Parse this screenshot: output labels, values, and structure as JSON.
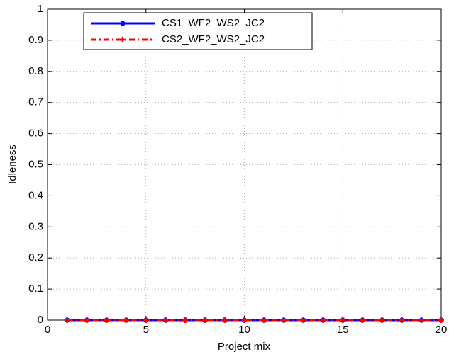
{
  "chart_data": {
    "type": "line",
    "x_label": "Project mix",
    "y_label": "Idleness",
    "x": [
      1,
      2,
      3,
      4,
      5,
      6,
      7,
      8,
      9,
      10,
      11,
      12,
      13,
      14,
      15,
      16,
      17,
      18,
      19,
      20
    ],
    "series": [
      {
        "name": "CS1_WF2_WS2_JC2",
        "color": "#0000ff",
        "linestyle": "solid",
        "marker": "dot",
        "values": [
          0,
          0,
          0,
          0,
          0,
          0,
          0,
          0,
          0,
          0,
          0,
          0,
          0,
          0,
          0,
          0,
          0,
          0,
          0,
          0
        ]
      },
      {
        "name": "CS2_WF2_WS2_JC2",
        "color": "#ff0000",
        "linestyle": "dash-dot",
        "marker": "plus",
        "values": [
          0,
          0,
          0,
          0,
          0,
          0,
          0,
          0,
          0,
          0,
          0,
          0,
          0,
          0,
          0,
          0,
          0,
          0,
          0,
          0
        ]
      }
    ],
    "xlim": [
      0,
      20
    ],
    "xticks": [
      0,
      5,
      10,
      15,
      20
    ],
    "ylim": [
      0,
      1
    ],
    "yticks": [
      0,
      0.1,
      0.2,
      0.3,
      0.4,
      0.5,
      0.6,
      0.7,
      0.8,
      0.9,
      1
    ],
    "grid": true,
    "legend": "top-left"
  }
}
